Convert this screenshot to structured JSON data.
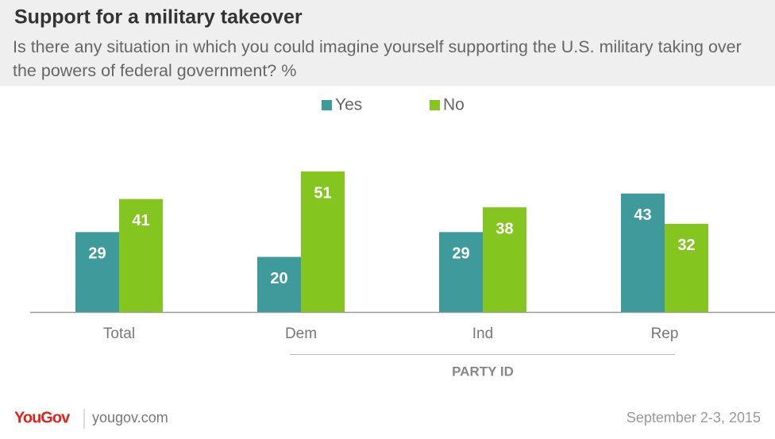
{
  "chart_data": {
    "type": "bar",
    "title": "Support for a military takeover",
    "subtitle": "Is there any situation in which you could imagine yourself supporting the U.S. military taking over the powers of federal government? %",
    "categories": [
      "Total",
      "Dem",
      "Ind",
      "Rep"
    ],
    "series": [
      {
        "name": "Yes",
        "color": "#3f9a9c",
        "values": [
          29,
          20,
          29,
          43
        ]
      },
      {
        "name": "No",
        "color": "#84c520",
        "values": [
          41,
          51,
          38,
          32
        ]
      }
    ],
    "group_label": "PARTY ID"
  },
  "footer": {
    "brand": "YouGov",
    "url": "yougov.com",
    "date": "September 2-3, 2015"
  }
}
